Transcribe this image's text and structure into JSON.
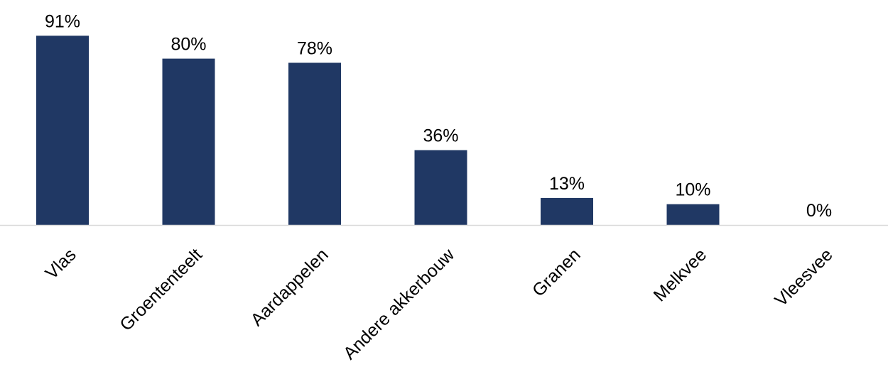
{
  "chart_data": {
    "type": "bar",
    "title": "",
    "xlabel": "",
    "ylabel": "",
    "ylim": [
      0,
      100
    ],
    "grid": false,
    "legend": "none",
    "bar_color": "#203864",
    "axis_color": "#d9d9d9",
    "categories": [
      "Vlas",
      "Groententeelt",
      "Aardappelen",
      "Andere akkerbouw",
      "Granen",
      "Melkvee",
      "Vleesvee"
    ],
    "values": [
      91,
      80,
      78,
      36,
      13,
      10,
      0
    ],
    "value_labels": [
      "91%",
      "80%",
      "78%",
      "36%",
      "13%",
      "10%",
      "0%"
    ]
  }
}
